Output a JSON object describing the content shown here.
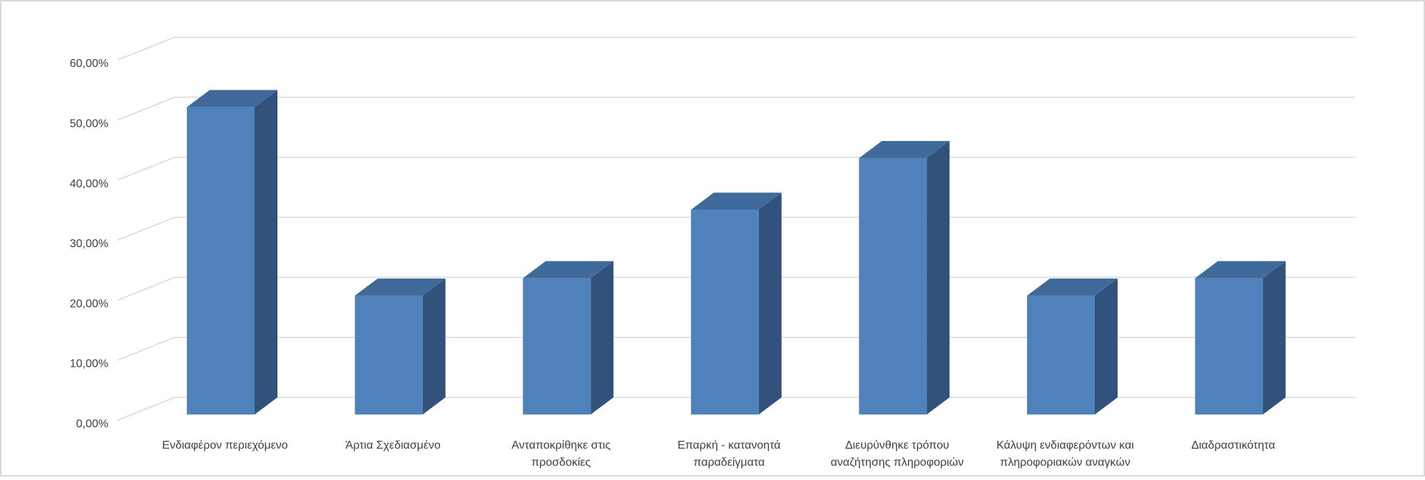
{
  "chart_data": {
    "type": "bar",
    "style": "3d-column",
    "title": "",
    "xlabel": "",
    "ylabel": "",
    "ylim": [
      0,
      60
    ],
    "yticks": [
      "0,00%",
      "10,00%",
      "20,00%",
      "30,00%",
      "40,00%",
      "50,00%",
      "60,00%"
    ],
    "grid": true,
    "legend": "none",
    "categories": [
      [
        "Ενδιαφέρον περιεχόμενο"
      ],
      [
        "Άρτια Σχεδιασμένο"
      ],
      [
        "Ανταποκρίθηκε  στις",
        "προσδοκίες"
      ],
      [
        "Επαρκή - κατανοητά",
        "παραδείγματα"
      ],
      [
        "Διευρύνθηκε τρόπου",
        "αναζήτησης πληροφοριών"
      ],
      [
        "Κάλυψη ενδιαφερόντων και",
        "πληροφοριακών αναγκών"
      ],
      [
        "Διαδραστικότητα"
      ]
    ],
    "values": [
      51.2,
      19.8,
      22.7,
      34.1,
      42.7,
      19.8,
      22.7
    ],
    "colors": {
      "front": "#4f81bd",
      "side": "#31527a",
      "top": "#3f6a9a",
      "grid": "#d9d9d9",
      "border": "#d9d9d9"
    }
  }
}
